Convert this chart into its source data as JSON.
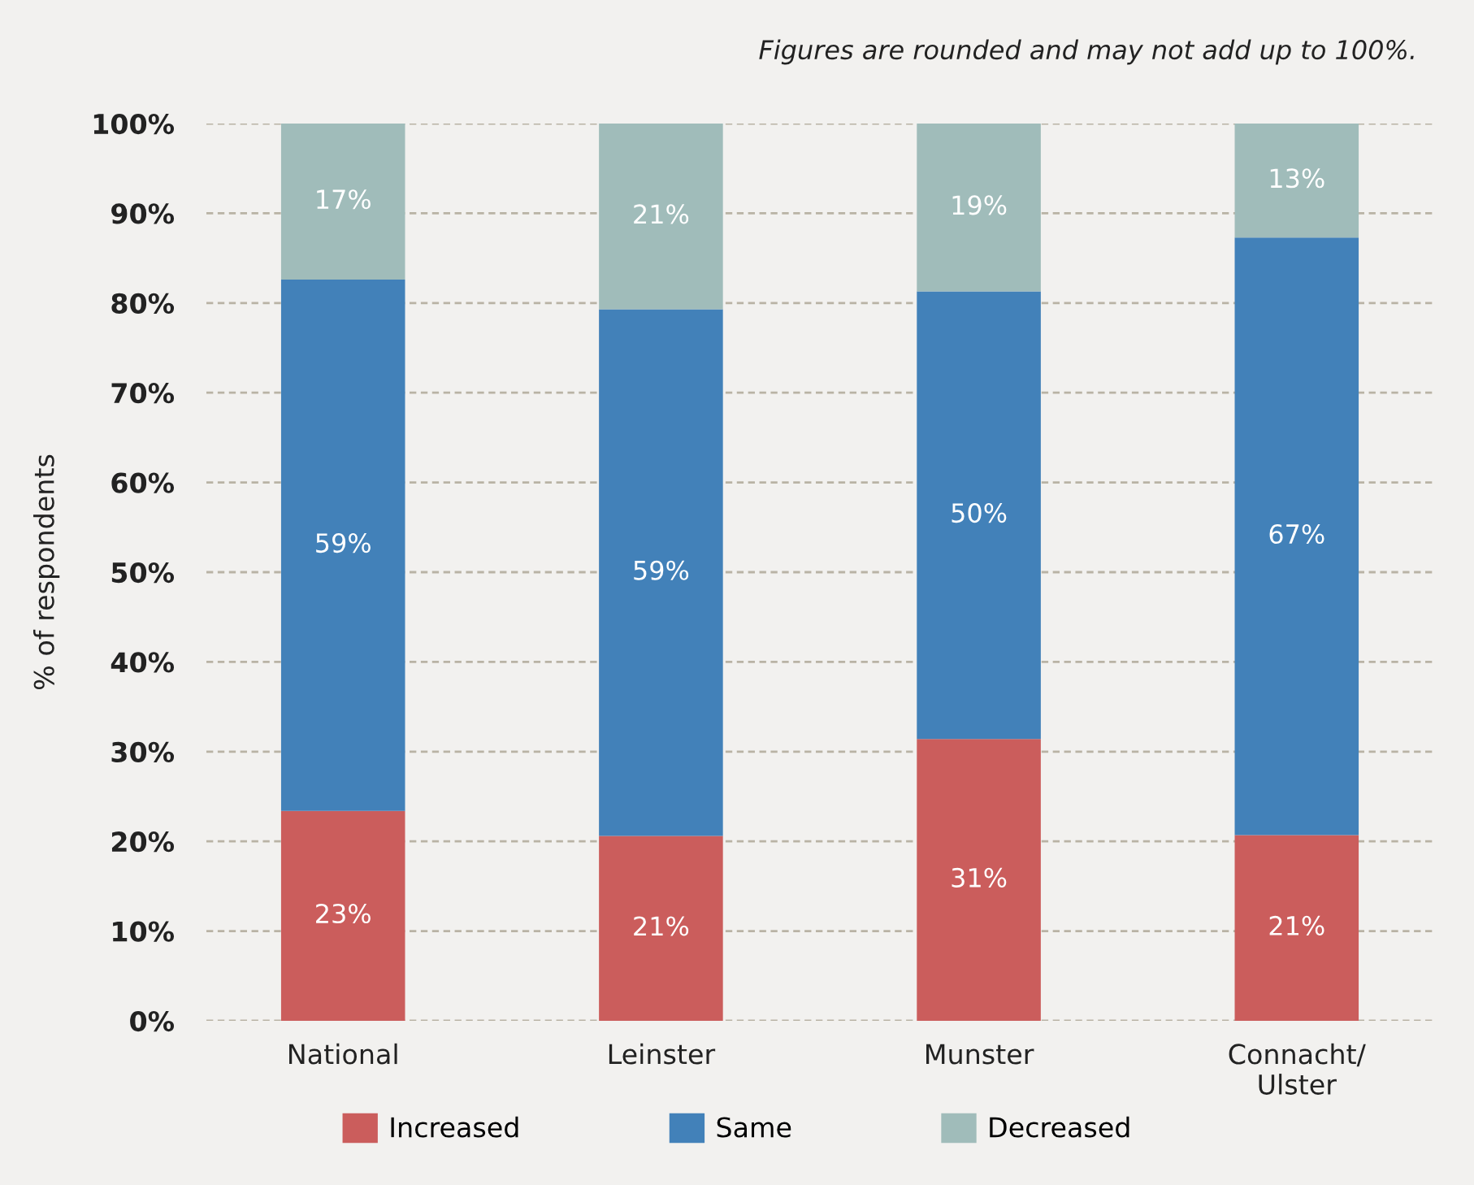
{
  "chart_data": {
    "type": "bar",
    "stacked": true,
    "categories": [
      "National",
      "Leinster",
      "Munster",
      "Connacht/\nUlster"
    ],
    "series": [
      {
        "name": "Increased",
        "color": "#cb5d5c",
        "values": [
          23.4,
          20.6,
          31.4,
          20.7
        ],
        "value_labels": [
          "23%",
          "21%",
          "31%",
          "21%"
        ]
      },
      {
        "name": "Same",
        "color": "#4281b9",
        "values": [
          59.2,
          58.7,
          49.9,
          66.6
        ],
        "value_labels": [
          "59%",
          "59%",
          "50%",
          "67%"
        ]
      },
      {
        "name": "Decreased",
        "color": "#a0bcba",
        "values": [
          17.4,
          20.7,
          18.7,
          12.7
        ],
        "value_labels": [
          "17%",
          "21%",
          "19%",
          "13%"
        ]
      }
    ],
    "ylabel": "% of respondents",
    "ylim": [
      0,
      100
    ],
    "yticks": [
      {
        "value": 0,
        "label": "0%"
      },
      {
        "value": 10,
        "label": "10%"
      },
      {
        "value": 20,
        "label": "20%"
      },
      {
        "value": 30,
        "label": "30%"
      },
      {
        "value": 40,
        "label": "40%"
      },
      {
        "value": 50,
        "label": "50%"
      },
      {
        "value": 60,
        "label": "60%"
      },
      {
        "value": 70,
        "label": "70%"
      },
      {
        "value": 80,
        "label": "80%"
      },
      {
        "value": 90,
        "label": "90%"
      },
      {
        "value": 100,
        "label": "100%"
      }
    ],
    "grid": "y",
    "legend": "bottom",
    "annotations": [
      "Figures are rounded and may not add up to 100%."
    ]
  }
}
